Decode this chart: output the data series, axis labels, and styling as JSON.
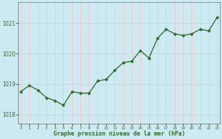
{
  "x": [
    0,
    1,
    2,
    3,
    4,
    5,
    6,
    7,
    8,
    9,
    10,
    11,
    12,
    13,
    14,
    15,
    16,
    17,
    18,
    19,
    20,
    21,
    22,
    23
  ],
  "y": [
    1018.75,
    1018.95,
    1018.8,
    1018.55,
    1018.45,
    1018.3,
    1018.75,
    1018.7,
    1018.7,
    1019.1,
    1019.15,
    1019.45,
    1019.7,
    1019.75,
    1020.1,
    1019.85,
    1020.5,
    1020.8,
    1020.65,
    1020.6,
    1020.65,
    1020.8,
    1020.75,
    1021.2
  ],
  "line_color": "#2d6e2d",
  "marker_color": "#2d6e2d",
  "bg_color": "#cdeaf2",
  "grid_color": "#f0c8c8",
  "xlabel": "Graphe pression niveau de la mer (hPa)",
  "xlabel_color": "#2d6e2d",
  "tick_label_color": "#2d6e2d",
  "ylim": [
    1017.7,
    1021.7
  ],
  "yticks": [
    1018,
    1019,
    1020,
    1021
  ],
  "ytick_labels": [
    "1018",
    "1019",
    "1020",
    "1021"
  ],
  "xticks": [
    0,
    1,
    2,
    3,
    4,
    5,
    6,
    7,
    8,
    9,
    10,
    11,
    12,
    13,
    14,
    15,
    16,
    17,
    18,
    19,
    20,
    21,
    22,
    23
  ],
  "marker_size": 2.5,
  "line_width": 1.0,
  "border_color": "#666666"
}
